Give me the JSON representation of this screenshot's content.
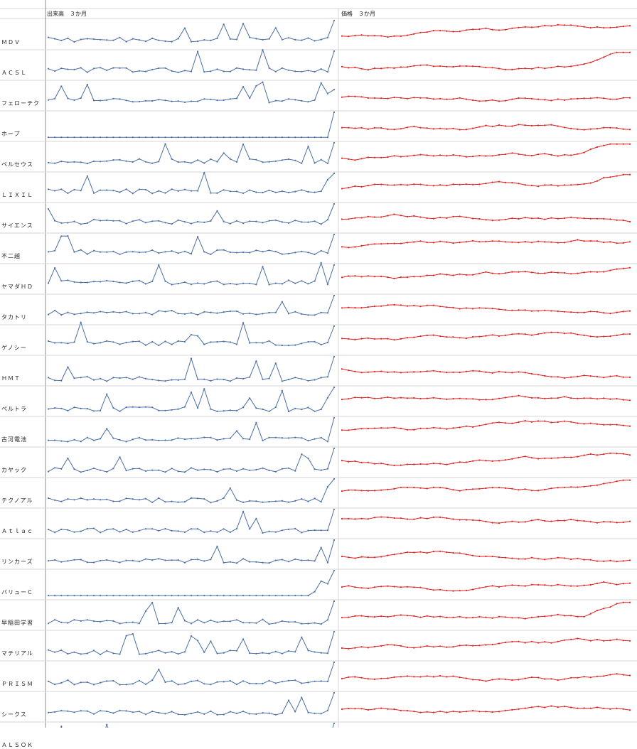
{
  "headers": {
    "volume": "出来高　３か月",
    "price": "価格　３か月"
  },
  "colors": {
    "volume_line": "#4a6fa5",
    "price_line": "#e02020",
    "grid": "#d4d4d4",
    "divider": "#888888"
  },
  "rows": [
    {
      "name": "ＭＤＶ"
    },
    {
      "name": "ＡＣＳＬ"
    },
    {
      "name": "フェローテク"
    },
    {
      "name": "ホープ"
    },
    {
      "name": "ペルセウス"
    },
    {
      "name": "ＬＩＸＩＬ"
    },
    {
      "name": "サイエンス"
    },
    {
      "name": "不二越"
    },
    {
      "name": "ヤマダＨＤ"
    },
    {
      "name": "タカトリ"
    },
    {
      "name": "ゲノシー"
    },
    {
      "name": "ＨＭＴ"
    },
    {
      "name": "ペルトラ"
    },
    {
      "name": "古河電池"
    },
    {
      "name": "カヤック"
    },
    {
      "name": "テクノアル"
    },
    {
      "name": "Ａｔｌａｃ"
    },
    {
      "name": "リンカーズ"
    },
    {
      "name": "バリューＣ"
    },
    {
      "name": "早稲田学習"
    },
    {
      "name": "マテリアル"
    },
    {
      "name": "ＰＲＩＳＭ"
    },
    {
      "name": "シークス"
    },
    {
      "name": "ＡＬＳＯＫ"
    }
  ]
}
